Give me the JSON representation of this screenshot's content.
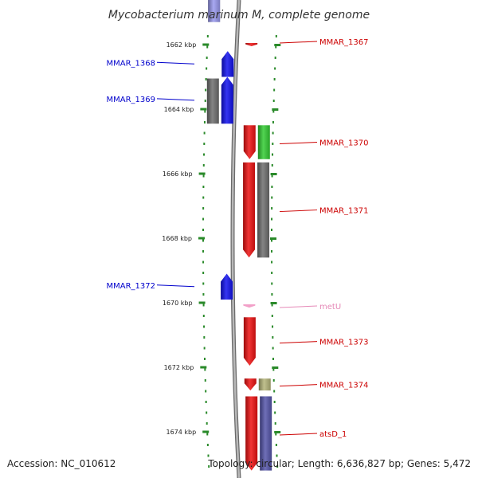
{
  "title": "Mycobacterium marinum M, complete genome",
  "accession": "Accession: NC_010612",
  "summary": "Topology: circular; Length: 6,636,827 bp; Genes: 5,472",
  "colors": {
    "backbone": "#9a9a9a",
    "tick": "#2a8a2a",
    "reverse_label": "#0000cc",
    "forward_label": "#cc0000",
    "rna_label": "#e68ab8",
    "cds_red": "#ee1111",
    "cds_blue": "#1111ee",
    "cds_green": "#33cc33",
    "cds_gray": "#6e6e6e",
    "cds_olive": "#b5b57a",
    "cds_purple": "#5555aa",
    "rna_pink": "#f2a0c8",
    "faded_gray": "#c8c8c8",
    "faded_blue": "#9999ee"
  },
  "ruler": {
    "unit": "kbp",
    "ticks": [
      {
        "kbp": 1662,
        "label": "1662 kbp"
      },
      {
        "kbp": 1664,
        "label": "1664 kbp"
      },
      {
        "kbp": 1666,
        "label": "1666 kbp"
      },
      {
        "kbp": 1668,
        "label": "1668 kbp"
      },
      {
        "kbp": 1670,
        "label": "1670 kbp"
      },
      {
        "kbp": 1672,
        "label": "1672 kbp"
      },
      {
        "kbp": 1674,
        "label": "1674 kbp"
      }
    ]
  },
  "genes": [
    {
      "name": "MMAR_1367",
      "strand": "+",
      "type": "CDS",
      "color": "cds_red",
      "start": 1661.95,
      "end": 1662.05
    },
    {
      "name": "MMAR_1368",
      "strand": "-",
      "type": "CDS",
      "color": "cds_blue",
      "start": 1662.2,
      "end": 1663.0
    },
    {
      "name": "MMAR_1369",
      "strand": "-",
      "type": "CDS",
      "color": "cds_blue",
      "start": 1663.0,
      "end": 1664.45
    },
    {
      "name": "",
      "strand": "-",
      "type": "CDS",
      "color": "cds_gray",
      "start": 1663.05,
      "end": 1664.45
    },
    {
      "name": "MMAR_1370",
      "strand": "+",
      "type": "CDS",
      "color": "cds_red",
      "start": 1664.5,
      "end": 1665.55
    },
    {
      "name": "",
      "strand": "+",
      "type": "CDS",
      "color": "cds_green",
      "start": 1664.5,
      "end": 1665.55
    },
    {
      "name": "MMAR_1371",
      "strand": "+",
      "type": "CDS",
      "color": "cds_red",
      "start": 1665.65,
      "end": 1668.6
    },
    {
      "name": "",
      "strand": "+",
      "type": "CDS",
      "color": "cds_gray",
      "start": 1665.65,
      "end": 1668.6
    },
    {
      "name": "MMAR_1372",
      "strand": "-",
      "type": "CDS",
      "color": "cds_blue",
      "start": 1669.1,
      "end": 1669.9
    },
    {
      "name": "metU",
      "strand": "+",
      "type": "RNA",
      "color": "rna_pink",
      "start": 1670.05,
      "end": 1670.15
    },
    {
      "name": "MMAR_1373",
      "strand": "+",
      "type": "CDS",
      "color": "cds_red",
      "start": 1670.45,
      "end": 1671.95
    },
    {
      "name": "MMAR_1374",
      "strand": "+",
      "type": "CDS",
      "color": "cds_red",
      "start": 1672.35,
      "end": 1672.72
    },
    {
      "name": "",
      "strand": "+",
      "type": "CDS",
      "color": "cds_olive",
      "start": 1672.35,
      "end": 1672.72
    },
    {
      "name": "atsD_1",
      "strand": "+",
      "type": "CDS",
      "color": "cds_red",
      "start": 1672.9,
      "end": 1675.2
    },
    {
      "name": "",
      "strand": "+",
      "type": "CDS",
      "color": "cds_purple",
      "start": 1672.9,
      "end": 1675.2
    },
    {
      "name": "",
      "strand": "-",
      "type": "CDS",
      "color": "faded_gray",
      "start": 1660.6,
      "end": 1661.3
    },
    {
      "name": "",
      "strand": "-",
      "type": "CDS",
      "color": "faded_blue",
      "start": 1660.6,
      "end": 1661.3
    }
  ]
}
